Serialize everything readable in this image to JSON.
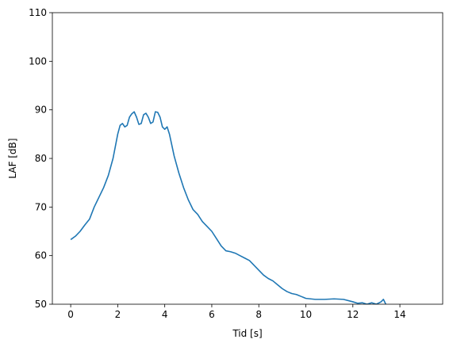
{
  "chart_data": {
    "type": "line",
    "x_label": "Tid [s]",
    "y_label": "LAF [dB]",
    "x": [
      0.0,
      0.2,
      0.4,
      0.6,
      0.8,
      1.0,
      1.2,
      1.4,
      1.6,
      1.8,
      2.0,
      2.1,
      2.2,
      2.3,
      2.4,
      2.5,
      2.6,
      2.7,
      2.8,
      2.9,
      3.0,
      3.1,
      3.2,
      3.3,
      3.4,
      3.5,
      3.6,
      3.7,
      3.8,
      3.9,
      4.0,
      4.1,
      4.2,
      4.4,
      4.6,
      4.8,
      5.0,
      5.2,
      5.4,
      5.6,
      5.8,
      6.0,
      6.2,
      6.4,
      6.6,
      6.8,
      7.0,
      7.2,
      7.4,
      7.6,
      7.8,
      8.0,
      8.2,
      8.4,
      8.6,
      8.8,
      9.0,
      9.2,
      9.4,
      9.6,
      9.8,
      10.0,
      10.4,
      10.8,
      11.2,
      11.6,
      12.0,
      12.2,
      12.4,
      12.6,
      12.8,
      13.0,
      13.2,
      13.3,
      13.4
    ],
    "series": [
      {
        "color": "#1f77b4",
        "values": [
          63.3,
          64.0,
          65.0,
          66.3,
          67.5,
          70.0,
          72.0,
          74.0,
          76.5,
          80.0,
          85.0,
          86.8,
          87.2,
          86.5,
          86.8,
          88.5,
          89.2,
          89.6,
          88.5,
          87.0,
          87.2,
          89.0,
          89.3,
          88.5,
          87.2,
          87.5,
          89.6,
          89.5,
          88.5,
          86.5,
          86.0,
          86.5,
          85.0,
          80.5,
          77.0,
          74.0,
          71.5,
          69.5,
          68.5,
          67.0,
          66.0,
          65.0,
          63.5,
          62.0,
          61.0,
          60.8,
          60.5,
          60.0,
          59.5,
          59.0,
          58.0,
          57.0,
          56.0,
          55.3,
          54.8,
          54.0,
          53.2,
          52.6,
          52.2,
          52.0,
          51.6,
          51.2,
          51.0,
          51.0,
          51.1,
          51.0,
          50.5,
          50.2,
          50.3,
          50.0,
          50.3,
          50.0,
          50.5,
          51.0,
          50.0
        ]
      }
    ],
    "xlim": [
      -0.78,
      15.82
    ],
    "xticks": [
      0,
      2,
      4,
      6,
      8,
      10,
      12,
      14
    ],
    "ylim": [
      50,
      110
    ],
    "yticks": [
      50,
      60,
      70,
      80,
      90,
      100,
      110
    ]
  }
}
